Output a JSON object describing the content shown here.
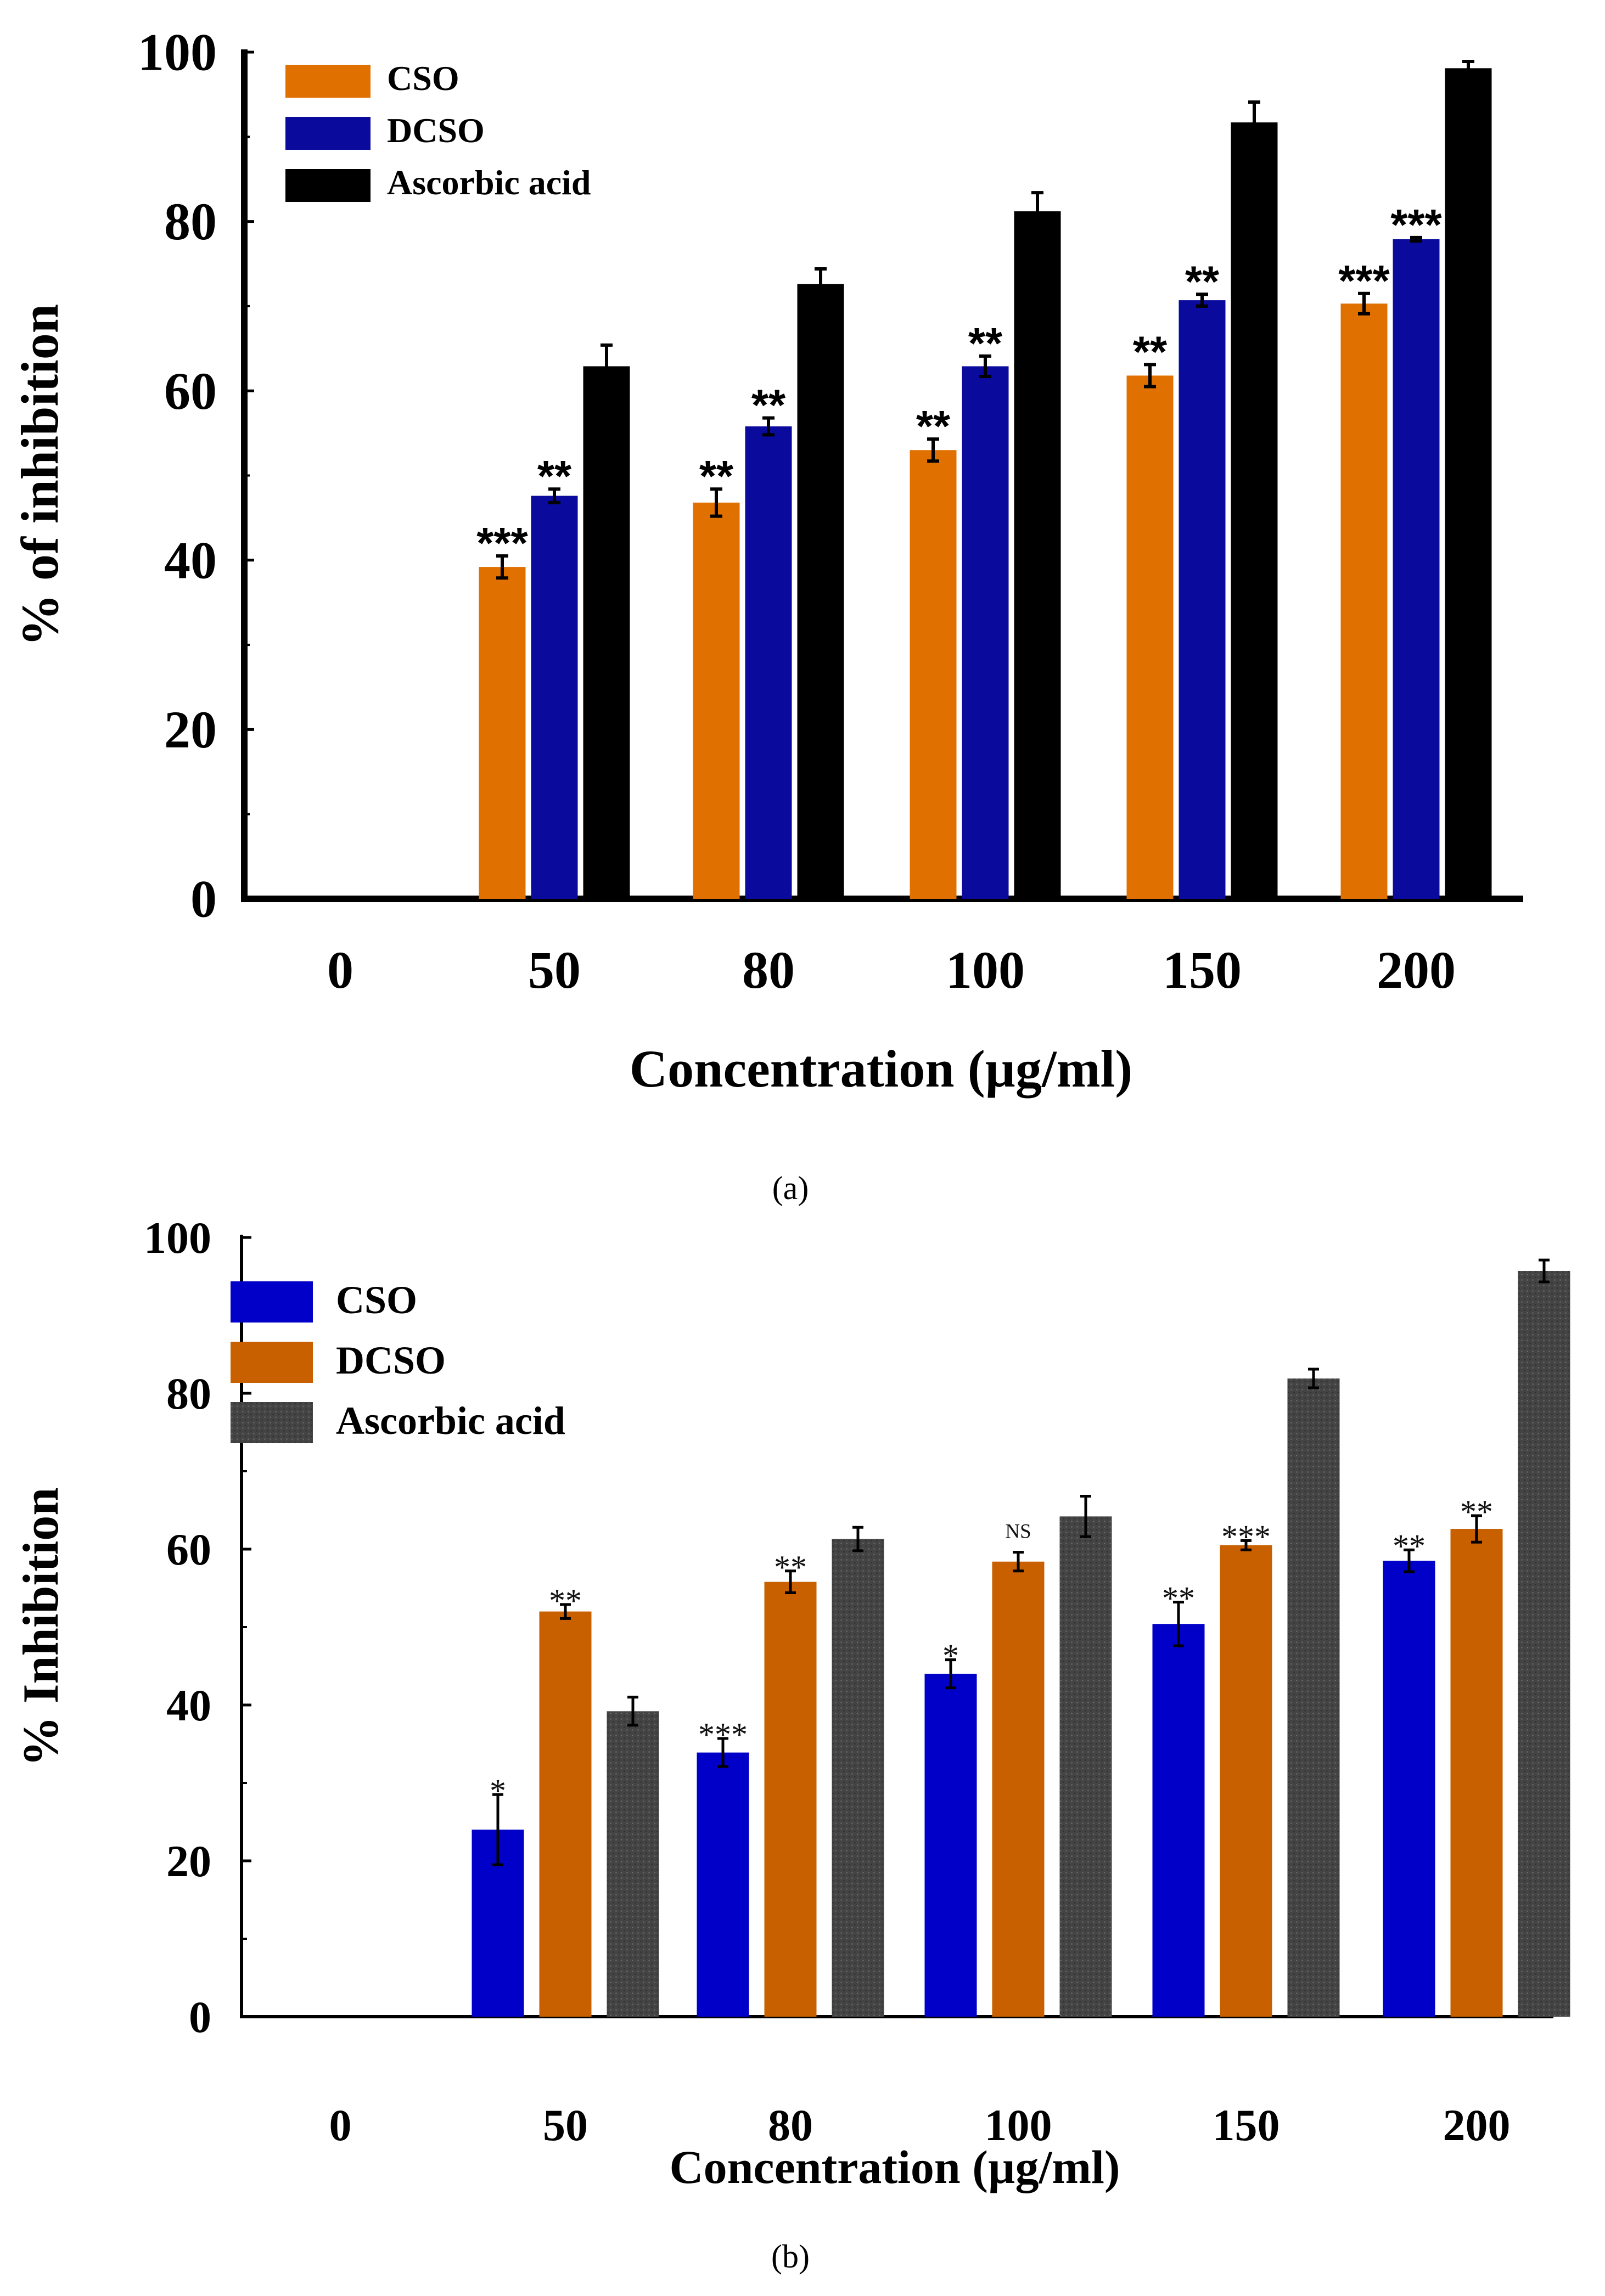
{
  "chart_data": [
    {
      "type": "bar",
      "panel_label": "(a)",
      "xlabel": "Concentration (µg/ml)",
      "ylabel": "% of inhibition",
      "categories": [
        "0",
        "50",
        "80",
        "100",
        "150",
        "200"
      ],
      "ylim": [
        0,
        100
      ],
      "yticks": [
        "0",
        "20",
        "40",
        "60",
        "80",
        "100"
      ],
      "legend_position": "top-left",
      "series": [
        {
          "name": "CSO",
          "color": "#e07000",
          "values": [
            null,
            39.2,
            46.8,
            53.0,
            61.8,
            70.3
          ],
          "errors": [
            null,
            1.3,
            1.6,
            1.3,
            1.3,
            1.2
          ],
          "significance": [
            "",
            "***",
            "**",
            "**",
            "**",
            "***"
          ]
        },
        {
          "name": "DCSO",
          "color": "#0a0a9c",
          "values": [
            null,
            47.6,
            55.8,
            62.9,
            70.7,
            77.9
          ],
          "errors": [
            null,
            0.8,
            1.0,
            1.2,
            0.7,
            0.2
          ],
          "significance": [
            "",
            "**",
            "**",
            "**",
            "**",
            "***"
          ]
        },
        {
          "name": "Ascorbic acid",
          "color": "#000000",
          "values": [
            null,
            62.9,
            72.6,
            81.2,
            91.7,
            98.1
          ],
          "errors": [
            null,
            2.5,
            1.8,
            2.2,
            2.4,
            0.8
          ],
          "significance": [
            "",
            "",
            "",
            "",
            "",
            ""
          ]
        }
      ]
    },
    {
      "type": "bar",
      "panel_label": "(b)",
      "xlabel": "Concentration (µg/ml)",
      "ylabel": "% Inhibition",
      "categories": [
        "0",
        "50",
        "80",
        "100",
        "150",
        "200"
      ],
      "ylim": [
        0,
        100
      ],
      "yticks": [
        "0",
        "20",
        "40",
        "60",
        "80",
        "100"
      ],
      "legend_position": "top-left",
      "series": [
        {
          "name": "CSO",
          "color": "#0000c8",
          "values": [
            null,
            24.0,
            33.9,
            44.0,
            50.4,
            58.5
          ],
          "errors": [
            null,
            4.5,
            1.8,
            1.8,
            2.8,
            1.4
          ],
          "significance": [
            "",
            "*",
            "***",
            "*",
            "**",
            "**"
          ]
        },
        {
          "name": "DCSO",
          "color": "#c86000",
          "values": [
            null,
            52.0,
            55.8,
            58.4,
            60.5,
            62.6
          ],
          "errors": [
            null,
            0.9,
            1.4,
            1.2,
            0.6,
            1.7
          ],
          "significance": [
            "",
            "**",
            "**",
            "NS",
            "***",
            "**"
          ]
        },
        {
          "name": "Ascorbic acid",
          "color": "#464646",
          "values": [
            null,
            39.2,
            61.3,
            64.2,
            81.9,
            95.7
          ],
          "errors": [
            null,
            1.8,
            1.5,
            2.6,
            1.2,
            1.4
          ],
          "significance": [
            "",
            "",
            "",
            "",
            "",
            ""
          ]
        }
      ]
    }
  ]
}
